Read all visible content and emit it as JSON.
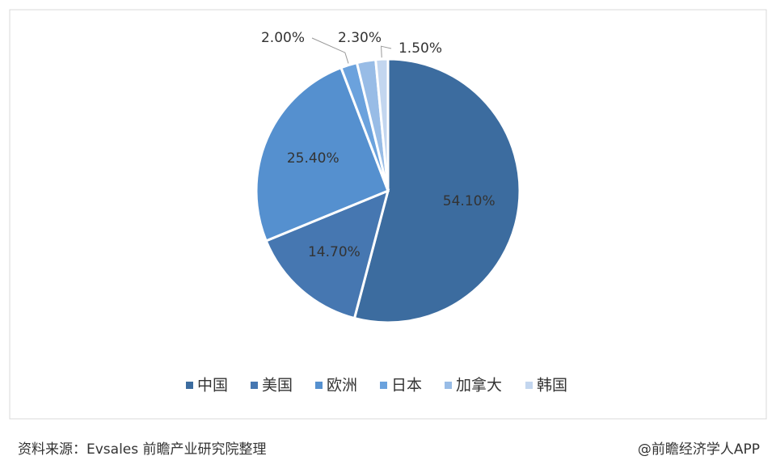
{
  "chart_data": {
    "type": "pie",
    "categories": [
      "中国",
      "美国",
      "欧洲",
      "日本",
      "加拿大",
      "韩国"
    ],
    "values": [
      54.1,
      14.7,
      25.4,
      2.0,
      2.3,
      1.5
    ],
    "value_labels": [
      "54.10%",
      "14.70%",
      "25.40%",
      "2.00%",
      "2.30%",
      "1.50%"
    ],
    "colors": [
      "#3c6c9f",
      "#4677b1",
      "#5590cf",
      "#6ba2dd",
      "#98bce6",
      "#c3d6ef"
    ],
    "legend": "bottom"
  },
  "footer": {
    "source": "资料来源：Evsales 前瞻产业研究院整理",
    "credit": "@前瞻经济学人APP"
  }
}
